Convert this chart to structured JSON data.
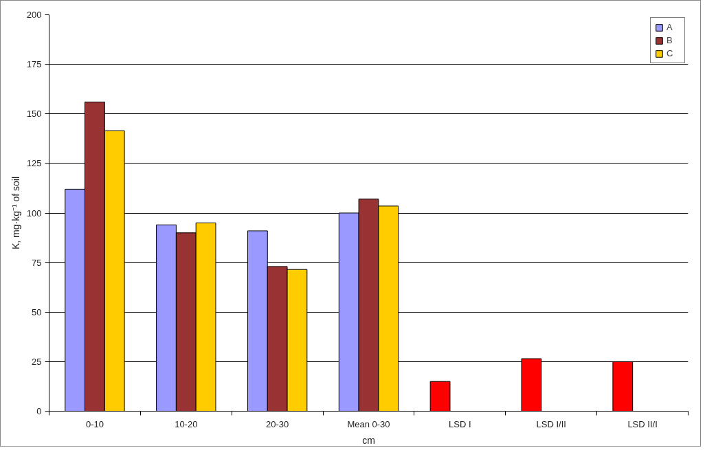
{
  "chart_data": {
    "type": "bar",
    "xlabel": "cm",
    "ylabel": "K, mg·kg⁻¹ of soil",
    "categories": [
      "0-10",
      "10-20",
      "20-30",
      "Mean 0-30",
      "LSD I",
      "LSD I/II",
      "LSD II/I"
    ],
    "series": [
      {
        "name": "A",
        "color": "#9999ff",
        "colors": [
          "#9999ff",
          "#9999ff",
          "#9999ff",
          "#9999ff",
          "#ff0000",
          "#ff0000",
          "#ff0000"
        ],
        "values": [
          112,
          94,
          91,
          100,
          15,
          26.5,
          25
        ]
      },
      {
        "name": "B",
        "color": "#993333",
        "values": [
          156,
          90,
          73,
          107,
          null,
          null,
          null
        ]
      },
      {
        "name": "C",
        "color": "#ffcc00",
        "values": [
          141.5,
          95,
          71.5,
          103.5,
          null,
          null,
          null
        ]
      }
    ],
    "ylim": [
      0,
      200
    ],
    "yticks": [
      0,
      25,
      50,
      75,
      100,
      125,
      150,
      175,
      200
    ],
    "grid": "y",
    "legend": "top right"
  }
}
